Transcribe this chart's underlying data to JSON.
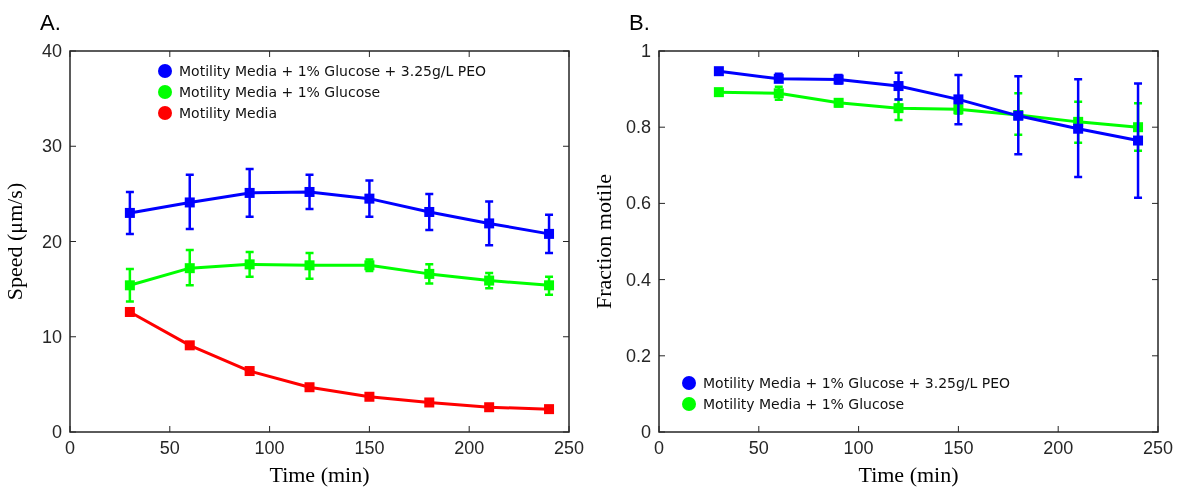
{
  "chart_data": [
    {
      "type": "line",
      "title": "A.",
      "xlabel": "Time (min)",
      "ylabel": "Speed (μm/s)",
      "x": [
        30,
        60,
        90,
        120,
        150,
        180,
        210,
        240
      ],
      "xlim": [
        0,
        250
      ],
      "xticks": [
        0,
        50,
        100,
        150,
        200,
        250
      ],
      "ylim": [
        0,
        40
      ],
      "yticks": [
        0,
        10,
        20,
        30,
        40
      ],
      "marker": "square",
      "grid": false,
      "legend": "top",
      "series": [
        {
          "name": "Motility Media + 1% Glucose + 3.25g/L PEO",
          "color": "#0000ff",
          "values": [
            23.0,
            24.1,
            25.1,
            25.2,
            24.5,
            23.1,
            21.9,
            20.8
          ],
          "errors": [
            [
              20.8,
              25.2
            ],
            [
              21.3,
              27.0
            ],
            [
              22.6,
              27.6
            ],
            [
              23.4,
              27.0
            ],
            [
              22.6,
              26.4
            ],
            [
              21.2,
              25.0
            ],
            [
              19.6,
              24.2
            ],
            [
              18.8,
              22.8
            ]
          ]
        },
        {
          "name": "Motility Media + 1% Glucose",
          "color": "#00ff00",
          "values": [
            15.4,
            17.2,
            17.6,
            17.5,
            17.5,
            16.6,
            15.9,
            15.4
          ],
          "errors": [
            [
              13.7,
              17.1
            ],
            [
              15.4,
              19.1
            ],
            [
              16.3,
              18.9
            ],
            [
              16.1,
              18.8
            ],
            [
              16.9,
              18.1
            ],
            [
              15.6,
              17.6
            ],
            [
              15.1,
              16.7
            ],
            [
              14.4,
              16.3
            ]
          ]
        },
        {
          "name": "Motility Media",
          "color": "#ff0000",
          "values": [
            12.6,
            9.1,
            6.4,
            4.7,
            3.7,
            3.1,
            2.6,
            2.4
          ]
        }
      ]
    },
    {
      "type": "line",
      "title": "B.",
      "xlabel": "Time (min)",
      "ylabel": "Fraction motile",
      "x": [
        30,
        60,
        90,
        120,
        150,
        180,
        210,
        240
      ],
      "xlim": [
        0,
        250
      ],
      "xticks": [
        0,
        50,
        100,
        150,
        200,
        250
      ],
      "ylim": [
        0,
        1
      ],
      "yticks": [
        0,
        0.2,
        0.4,
        0.6,
        0.8,
        1
      ],
      "marker": "square",
      "grid": false,
      "legend": "bottom left",
      "series": [
        {
          "name": "Motility Media + 1% Glucose + 3.25g/L PEO",
          "color": "#0000ff",
          "values": [
            0.947,
            0.927,
            0.925,
            0.908,
            0.873,
            0.83,
            0.796,
            0.765
          ],
          "errors": [
            null,
            [
              0.92,
              0.94
            ],
            [
              0.915,
              0.937
            ],
            [
              0.873,
              0.943
            ],
            [
              0.808,
              0.937
            ],
            [
              0.729,
              0.934
            ],
            [
              0.669,
              0.926
            ],
            [
              0.615,
              0.915
            ]
          ]
        },
        {
          "name": "Motility Media + 1% Glucose",
          "color": "#00ff00",
          "values": [
            0.892,
            0.889,
            0.864,
            0.85,
            0.847,
            0.832,
            0.814,
            0.8
          ],
          "errors": [
            null,
            [
              0.872,
              0.906
            ],
            [
              0.855,
              0.873
            ],
            [
              0.819,
              0.873
            ],
            [
              0.836,
              0.858
            ],
            [
              0.78,
              0.889
            ],
            [
              0.759,
              0.867
            ],
            [
              0.738,
              0.863
            ]
          ]
        }
      ]
    }
  ]
}
